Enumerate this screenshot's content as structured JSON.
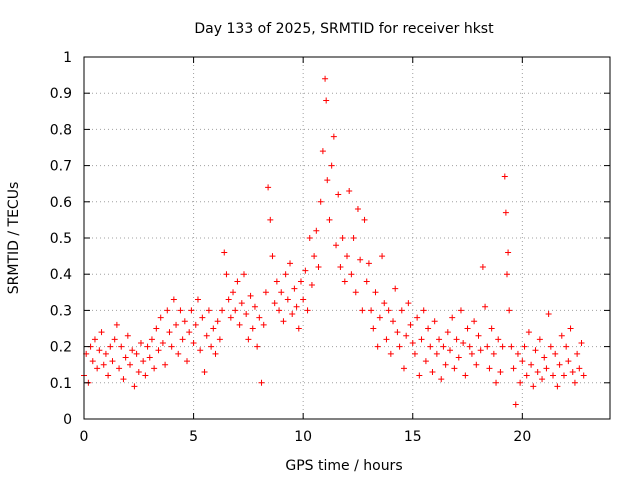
{
  "chart_data": {
    "type": "scatter",
    "title": "Day 133 of 2025, SRMTID for receiver hkst",
    "xlabel": "GPS time / hours",
    "ylabel": "SRMTID / TECUs",
    "xlim": [
      0,
      24
    ],
    "ylim": [
      0,
      1
    ],
    "xticks": [
      0,
      5,
      10,
      15,
      20
    ],
    "xtick_labels": [
      "0",
      "5",
      "10",
      "15",
      "20"
    ],
    "yticks": [
      0,
      0.1,
      0.2,
      0.3,
      0.4,
      0.5,
      0.6,
      0.7,
      0.8,
      0.9,
      1
    ],
    "ytick_labels": [
      "0",
      "0.1",
      "0.2",
      "0.3",
      "0.4",
      "0.5",
      "0.6",
      "0.7",
      "0.8",
      "0.9",
      "1"
    ],
    "grid": true,
    "marker": "+",
    "color": "#ff0000",
    "series": [
      {
        "name": "SRMTID",
        "points": [
          [
            0.0,
            0.12
          ],
          [
            0.1,
            0.18
          ],
          [
            0.2,
            0.1
          ],
          [
            0.3,
            0.2
          ],
          [
            0.4,
            0.16
          ],
          [
            0.5,
            0.22
          ],
          [
            0.6,
            0.14
          ],
          [
            0.7,
            0.19
          ],
          [
            0.8,
            0.24
          ],
          [
            0.9,
            0.15
          ],
          [
            1.0,
            0.18
          ],
          [
            1.1,
            0.12
          ],
          [
            1.2,
            0.2
          ],
          [
            1.3,
            0.16
          ],
          [
            1.4,
            0.22
          ],
          [
            1.5,
            0.26
          ],
          [
            1.6,
            0.14
          ],
          [
            1.7,
            0.2
          ],
          [
            1.8,
            0.11
          ],
          [
            1.9,
            0.17
          ],
          [
            2.0,
            0.23
          ],
          [
            2.1,
            0.15
          ],
          [
            2.2,
            0.19
          ],
          [
            2.3,
            0.09
          ],
          [
            2.4,
            0.18
          ],
          [
            2.5,
            0.13
          ],
          [
            2.6,
            0.21
          ],
          [
            2.7,
            0.16
          ],
          [
            2.8,
            0.12
          ],
          [
            2.9,
            0.2
          ],
          [
            3.0,
            0.17
          ],
          [
            3.1,
            0.22
          ],
          [
            3.2,
            0.14
          ],
          [
            3.3,
            0.25
          ],
          [
            3.4,
            0.19
          ],
          [
            3.5,
            0.28
          ],
          [
            3.6,
            0.21
          ],
          [
            3.7,
            0.15
          ],
          [
            3.8,
            0.3
          ],
          [
            3.9,
            0.24
          ],
          [
            4.0,
            0.2
          ],
          [
            4.1,
            0.33
          ],
          [
            4.2,
            0.26
          ],
          [
            4.3,
            0.18
          ],
          [
            4.4,
            0.3
          ],
          [
            4.5,
            0.22
          ],
          [
            4.6,
            0.27
          ],
          [
            4.7,
            0.16
          ],
          [
            4.8,
            0.24
          ],
          [
            4.9,
            0.3
          ],
          [
            5.0,
            0.21
          ],
          [
            5.1,
            0.26
          ],
          [
            5.2,
            0.33
          ],
          [
            5.3,
            0.19
          ],
          [
            5.4,
            0.28
          ],
          [
            5.5,
            0.13
          ],
          [
            5.6,
            0.23
          ],
          [
            5.7,
            0.3
          ],
          [
            5.8,
            0.2
          ],
          [
            5.9,
            0.25
          ],
          [
            6.0,
            0.18
          ],
          [
            6.1,
            0.27
          ],
          [
            6.2,
            0.22
          ],
          [
            6.3,
            0.3
          ],
          [
            6.4,
            0.46
          ],
          [
            6.5,
            0.4
          ],
          [
            6.6,
            0.33
          ],
          [
            6.7,
            0.28
          ],
          [
            6.8,
            0.35
          ],
          [
            6.9,
            0.3
          ],
          [
            7.0,
            0.38
          ],
          [
            7.1,
            0.26
          ],
          [
            7.2,
            0.32
          ],
          [
            7.3,
            0.4
          ],
          [
            7.4,
            0.29
          ],
          [
            7.5,
            0.22
          ],
          [
            7.6,
            0.34
          ],
          [
            7.7,
            0.25
          ],
          [
            7.8,
            0.31
          ],
          [
            7.9,
            0.2
          ],
          [
            8.0,
            0.28
          ],
          [
            8.1,
            0.1
          ],
          [
            8.2,
            0.26
          ],
          [
            8.3,
            0.35
          ],
          [
            8.4,
            0.64
          ],
          [
            8.5,
            0.55
          ],
          [
            8.6,
            0.45
          ],
          [
            8.7,
            0.32
          ],
          [
            8.8,
            0.38
          ],
          [
            8.9,
            0.3
          ],
          [
            9.0,
            0.35
          ],
          [
            9.1,
            0.27
          ],
          [
            9.2,
            0.4
          ],
          [
            9.3,
            0.33
          ],
          [
            9.4,
            0.43
          ],
          [
            9.5,
            0.29
          ],
          [
            9.6,
            0.36
          ],
          [
            9.7,
            0.31
          ],
          [
            9.8,
            0.25
          ],
          [
            9.9,
            0.38
          ],
          [
            10.0,
            0.33
          ],
          [
            10.1,
            0.41
          ],
          [
            10.2,
            0.3
          ],
          [
            10.3,
            0.5
          ],
          [
            10.4,
            0.37
          ],
          [
            10.5,
            0.45
          ],
          [
            10.6,
            0.52
          ],
          [
            10.7,
            0.42
          ],
          [
            10.8,
            0.6
          ],
          [
            10.9,
            0.74
          ],
          [
            11.0,
            0.94
          ],
          [
            11.05,
            0.88
          ],
          [
            11.1,
            0.66
          ],
          [
            11.2,
            0.55
          ],
          [
            11.3,
            0.7
          ],
          [
            11.4,
            0.78
          ],
          [
            11.5,
            0.48
          ],
          [
            11.6,
            0.62
          ],
          [
            11.7,
            0.42
          ],
          [
            11.8,
            0.5
          ],
          [
            11.9,
            0.38
          ],
          [
            12.0,
            0.45
          ],
          [
            12.1,
            0.63
          ],
          [
            12.2,
            0.4
          ],
          [
            12.3,
            0.5
          ],
          [
            12.4,
            0.35
          ],
          [
            12.5,
            0.58
          ],
          [
            12.6,
            0.44
          ],
          [
            12.7,
            0.3
          ],
          [
            12.8,
            0.55
          ],
          [
            12.9,
            0.38
          ],
          [
            13.0,
            0.43
          ],
          [
            13.1,
            0.3
          ],
          [
            13.2,
            0.25
          ],
          [
            13.3,
            0.35
          ],
          [
            13.4,
            0.2
          ],
          [
            13.5,
            0.28
          ],
          [
            13.6,
            0.45
          ],
          [
            13.7,
            0.32
          ],
          [
            13.8,
            0.22
          ],
          [
            13.9,
            0.3
          ],
          [
            14.0,
            0.18
          ],
          [
            14.1,
            0.27
          ],
          [
            14.2,
            0.36
          ],
          [
            14.3,
            0.24
          ],
          [
            14.4,
            0.2
          ],
          [
            14.5,
            0.3
          ],
          [
            14.6,
            0.14
          ],
          [
            14.7,
            0.23
          ],
          [
            14.8,
            0.32
          ],
          [
            14.9,
            0.26
          ],
          [
            15.0,
            0.21
          ],
          [
            15.1,
            0.18
          ],
          [
            15.2,
            0.28
          ],
          [
            15.3,
            0.12
          ],
          [
            15.4,
            0.22
          ],
          [
            15.5,
            0.3
          ],
          [
            15.6,
            0.16
          ],
          [
            15.7,
            0.25
          ],
          [
            15.8,
            0.2
          ],
          [
            15.9,
            0.13
          ],
          [
            16.0,
            0.27
          ],
          [
            16.1,
            0.18
          ],
          [
            16.2,
            0.22
          ],
          [
            16.3,
            0.11
          ],
          [
            16.4,
            0.2
          ],
          [
            16.5,
            0.15
          ],
          [
            16.6,
            0.24
          ],
          [
            16.7,
            0.19
          ],
          [
            16.8,
            0.28
          ],
          [
            16.9,
            0.14
          ],
          [
            17.0,
            0.22
          ],
          [
            17.1,
            0.17
          ],
          [
            17.2,
            0.3
          ],
          [
            17.3,
            0.21
          ],
          [
            17.4,
            0.12
          ],
          [
            17.5,
            0.25
          ],
          [
            17.6,
            0.2
          ],
          [
            17.7,
            0.18
          ],
          [
            17.8,
            0.27
          ],
          [
            17.9,
            0.15
          ],
          [
            18.0,
            0.23
          ],
          [
            18.1,
            0.19
          ],
          [
            18.2,
            0.42
          ],
          [
            18.3,
            0.31
          ],
          [
            18.4,
            0.2
          ],
          [
            18.5,
            0.14
          ],
          [
            18.6,
            0.25
          ],
          [
            18.7,
            0.18
          ],
          [
            18.8,
            0.1
          ],
          [
            18.9,
            0.22
          ],
          [
            19.0,
            0.13
          ],
          [
            19.1,
            0.2
          ],
          [
            19.2,
            0.67
          ],
          [
            19.25,
            0.57
          ],
          [
            19.3,
            0.4
          ],
          [
            19.35,
            0.46
          ],
          [
            19.4,
            0.3
          ],
          [
            19.5,
            0.2
          ],
          [
            19.6,
            0.14
          ],
          [
            19.7,
            0.04
          ],
          [
            19.8,
            0.18
          ],
          [
            19.9,
            0.1
          ],
          [
            20.0,
            0.16
          ],
          [
            20.1,
            0.2
          ],
          [
            20.2,
            0.12
          ],
          [
            20.3,
            0.24
          ],
          [
            20.4,
            0.15
          ],
          [
            20.5,
            0.09
          ],
          [
            20.6,
            0.19
          ],
          [
            20.7,
            0.13
          ],
          [
            20.8,
            0.22
          ],
          [
            20.9,
            0.11
          ],
          [
            21.0,
            0.17
          ],
          [
            21.1,
            0.14
          ],
          [
            21.2,
            0.29
          ],
          [
            21.3,
            0.2
          ],
          [
            21.4,
            0.12
          ],
          [
            21.5,
            0.18
          ],
          [
            21.6,
            0.09
          ],
          [
            21.7,
            0.15
          ],
          [
            21.8,
            0.23
          ],
          [
            21.9,
            0.12
          ],
          [
            22.0,
            0.2
          ],
          [
            22.1,
            0.16
          ],
          [
            22.2,
            0.25
          ],
          [
            22.3,
            0.13
          ],
          [
            22.4,
            0.1
          ],
          [
            22.5,
            0.18
          ],
          [
            22.6,
            0.14
          ],
          [
            22.7,
            0.21
          ],
          [
            22.8,
            0.12
          ]
        ]
      }
    ]
  }
}
